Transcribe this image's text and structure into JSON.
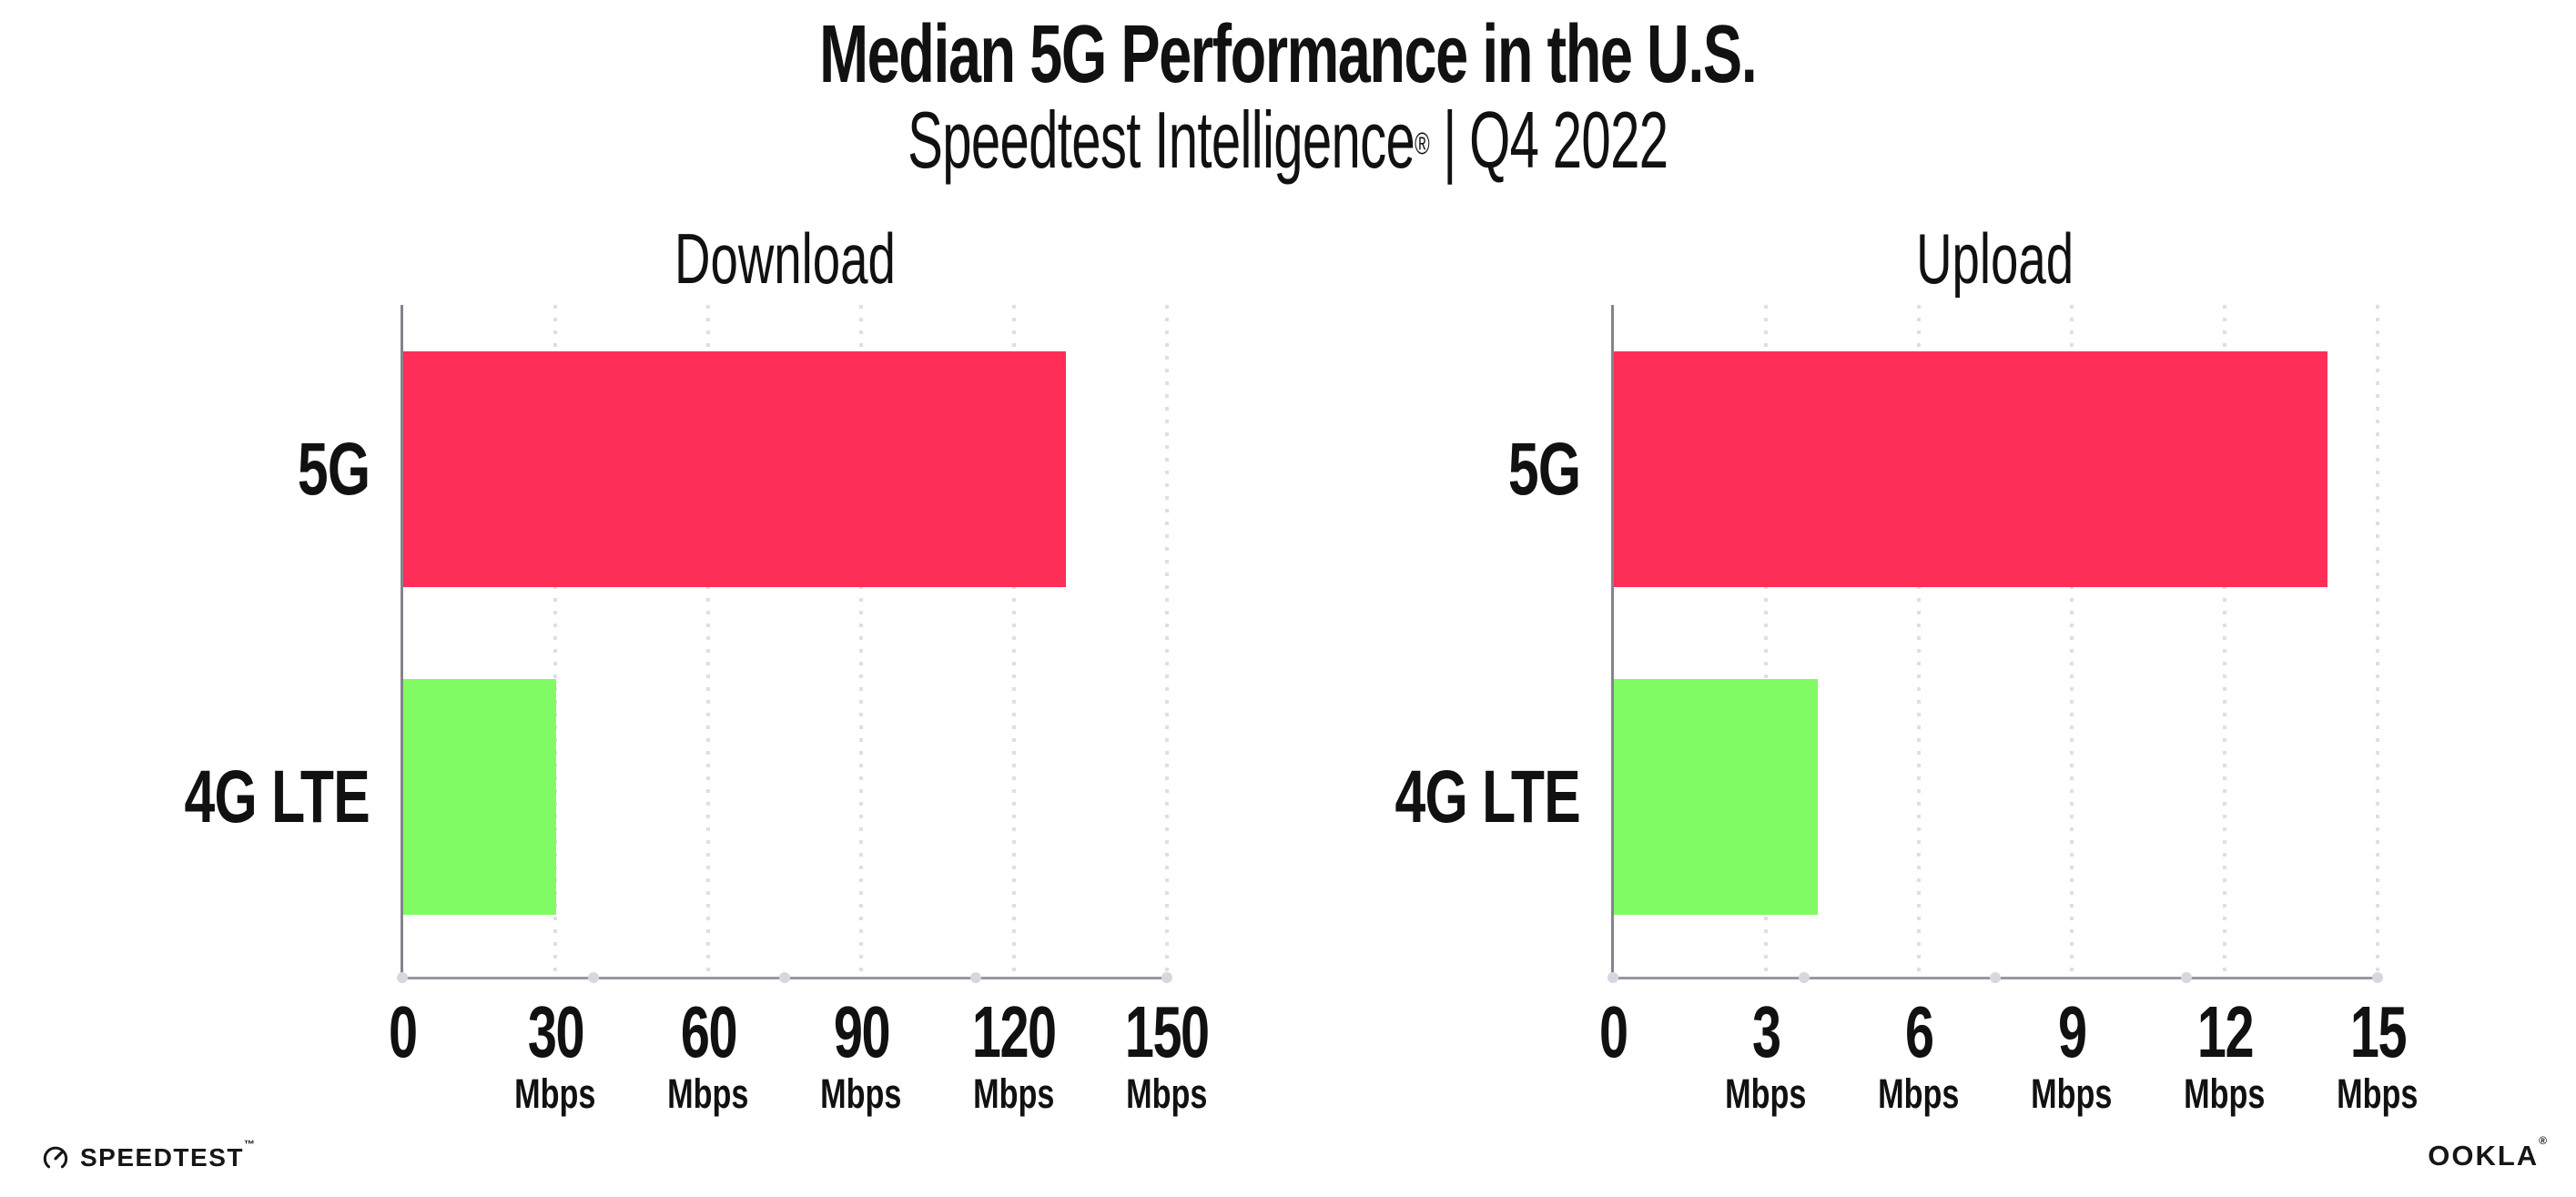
{
  "header": {
    "title": "Median 5G Performance in the U.S.",
    "subtitle_brand": "Speedtest Intelligence",
    "subtitle_reg": "®",
    "subtitle_divider": "|",
    "subtitle_quarter": "Q4 2022"
  },
  "chart_data": [
    {
      "type": "bar",
      "orientation": "horizontal",
      "title": "Download",
      "unit": "Mbps",
      "categories": [
        "5G",
        "4G LTE"
      ],
      "values": [
        130,
        30
      ],
      "xlim": [
        0,
        150
      ],
      "xticks": [
        0,
        30,
        60,
        90,
        120,
        150
      ],
      "grid": "dotted-vertical",
      "legend": "none",
      "bar_colors": [
        "#FF2E58",
        "#80FB63"
      ]
    },
    {
      "type": "bar",
      "orientation": "horizontal",
      "title": "Upload",
      "unit": "Mbps",
      "categories": [
        "5G",
        "4G LTE"
      ],
      "values": [
        14,
        4
      ],
      "xlim": [
        0,
        15
      ],
      "xticks": [
        0,
        3,
        6,
        9,
        12,
        15
      ],
      "grid": "dotted-vertical",
      "legend": "none",
      "bar_colors": [
        "#FF2E58",
        "#80FB63"
      ]
    }
  ],
  "footer": {
    "speedtest_label": "SPEEDTEST",
    "speedtest_mark": "™",
    "ookla_label": "OOKLA",
    "ookla_mark": "®"
  },
  "colors": {
    "bar_5g": "#FF2E58",
    "bar_4g_lte": "#80FB63",
    "x_axis_line": "#98989F",
    "y_axis_line": "#84848C",
    "gridline_dots": "#DEDEE8",
    "axis_end_dots": "#D7D7E0",
    "text": "#111111",
    "background": "#FFFFFF"
  }
}
